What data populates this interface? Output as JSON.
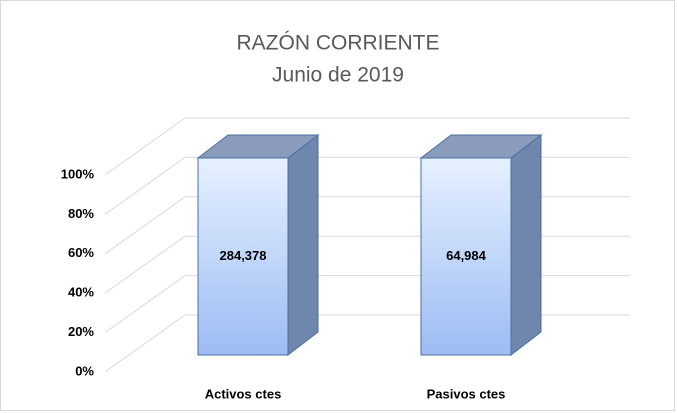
{
  "chart_data": {
    "type": "bar3d",
    "title": "RAZÓN CORRIENTE",
    "subtitle": "Junio de 2019",
    "stacking": "percent",
    "categories": [
      "Activos ctes",
      "Pasivos ctes"
    ],
    "values": [
      284378,
      64984
    ],
    "value_labels": [
      "284,378",
      "64,984"
    ],
    "color": "#a9c8f5",
    "ylim": [
      0,
      100
    ],
    "yticks": [
      {
        "value": 0,
        "label": "0%"
      },
      {
        "value": 20,
        "label": "20%"
      },
      {
        "value": 40,
        "label": "40%"
      },
      {
        "value": 60,
        "label": "60%"
      },
      {
        "value": 80,
        "label": "80%"
      },
      {
        "value": 100,
        "label": "100%"
      }
    ],
    "grid": true
  }
}
